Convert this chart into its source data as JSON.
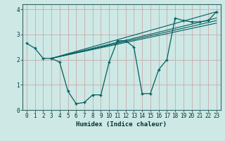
{
  "xlabel": "Humidex (Indice chaleur)",
  "xlim": [
    -0.5,
    23.5
  ],
  "ylim": [
    0,
    4.2
  ],
  "xticks": [
    0,
    1,
    2,
    3,
    4,
    5,
    6,
    7,
    8,
    9,
    10,
    11,
    12,
    13,
    14,
    15,
    16,
    17,
    18,
    19,
    20,
    21,
    22,
    23
  ],
  "yticks": [
    0,
    1,
    2,
    3,
    4
  ],
  "bg_color": "#cde8e5",
  "line_color": "#006060",
  "grid_color": "#b0d4d0",
  "main_line_x": [
    0,
    1,
    2,
    3,
    4,
    5,
    6,
    7,
    8,
    9,
    10,
    11,
    12,
    13,
    14,
    15,
    16,
    17,
    18,
    19,
    20,
    21,
    22,
    23
  ],
  "main_line_y": [
    2.65,
    2.45,
    2.05,
    2.05,
    1.9,
    0.75,
    0.25,
    0.3,
    0.6,
    0.6,
    1.9,
    2.75,
    2.75,
    2.5,
    0.65,
    0.65,
    1.6,
    2.0,
    3.65,
    3.55,
    3.5,
    3.5,
    3.55,
    3.9
  ],
  "linear_lines": [
    {
      "x": [
        3,
        23
      ],
      "y": [
        2.05,
        3.9
      ]
    },
    {
      "x": [
        3,
        23
      ],
      "y": [
        2.05,
        3.65
      ]
    },
    {
      "x": [
        3,
        23
      ],
      "y": [
        2.05,
        3.55
      ]
    },
    {
      "x": [
        3,
        23
      ],
      "y": [
        2.05,
        3.45
      ]
    }
  ]
}
